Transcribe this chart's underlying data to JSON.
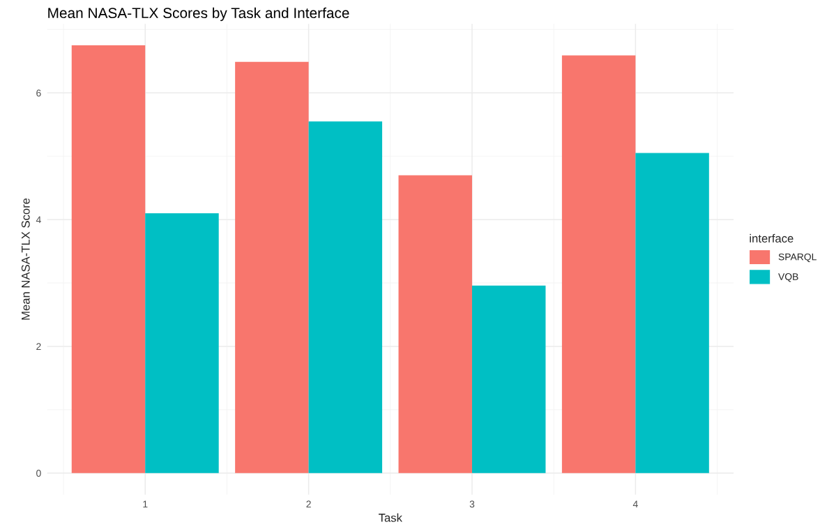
{
  "chart_data": {
    "type": "bar",
    "title": "Mean NASA-TLX Scores by Task and Interface",
    "xlabel": "Task",
    "ylabel": "Mean NASA-TLX Score",
    "legend_title": "interface",
    "categories": [
      "1",
      "2",
      "3",
      "4"
    ],
    "series": [
      {
        "name": "SPARQL",
        "color": "#f8766d",
        "values": [
          6.75,
          6.49,
          4.7,
          6.59
        ]
      },
      {
        "name": "VQB",
        "color": "#00bfc4",
        "values": [
          4.1,
          5.55,
          2.96,
          5.05
        ]
      }
    ],
    "ylim": [
      -0.34,
      7.09
    ],
    "yticks": [
      0,
      2,
      4,
      6
    ],
    "grid": true,
    "legend": "right"
  }
}
